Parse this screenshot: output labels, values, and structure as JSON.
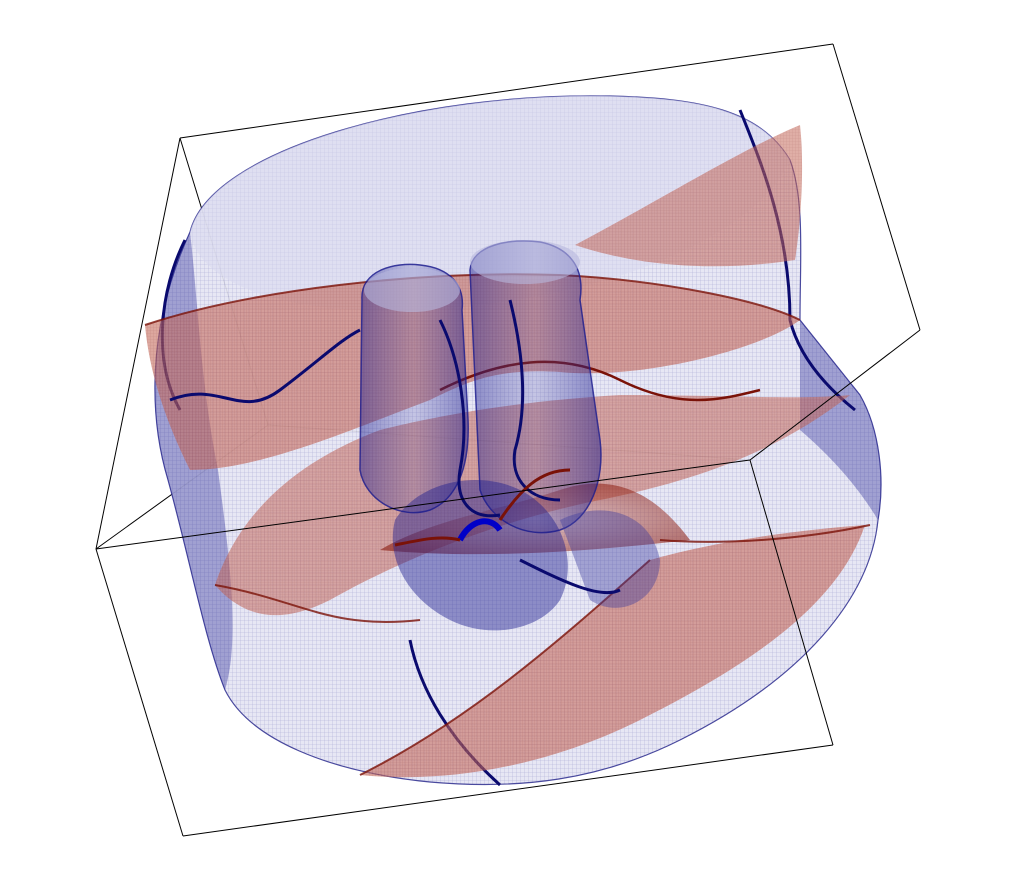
{
  "scene": {
    "colors": {
      "background": "#ffffff",
      "frame_line": "#000000",
      "surface_blue": "#1a1a8c",
      "surface_blue_dark": "#0a0a6e",
      "surface_red": "#9a2318",
      "surface_red_dark": "#7a1208"
    },
    "layers": [
      {
        "name": "outer-cylinder-shell",
        "color_key": "surface_blue"
      },
      {
        "name": "twisted-red-sheets",
        "color_key": "surface_red"
      },
      {
        "name": "inner-twin-tubes",
        "color_key": "surface_blue_dark"
      },
      {
        "name": "vortex-core-filaments",
        "color_key": "surface_blue_dark"
      }
    ]
  }
}
